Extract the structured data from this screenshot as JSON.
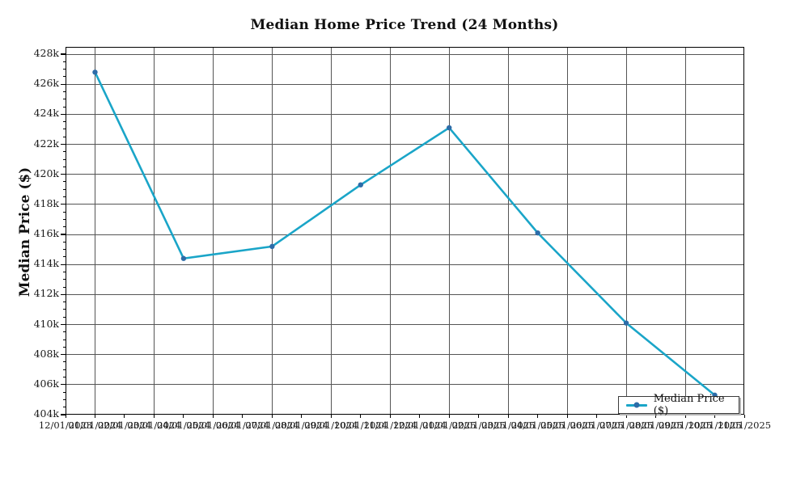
{
  "chart_data": {
    "type": "line",
    "title": "Median Home Price Trend (24 Months)",
    "xlabel": "",
    "ylabel": "Median Price ($)",
    "ylim_k": [
      404,
      428.5
    ],
    "grid": "on",
    "legend_position": "lower right",
    "colors": {
      "line": "#1aa5c8",
      "marker": "#2d6ca8",
      "grid": "#555555",
      "spine": "#000000"
    },
    "y_ticks": [
      {
        "label": "404k",
        "value": 404
      },
      {
        "label": "406k",
        "value": 406
      },
      {
        "label": "408k",
        "value": 408
      },
      {
        "label": "410k",
        "value": 410
      },
      {
        "label": "412k",
        "value": 412
      },
      {
        "label": "414k",
        "value": 414
      },
      {
        "label": "416k",
        "value": 416
      },
      {
        "label": "418k",
        "value": 418
      },
      {
        "label": "420k",
        "value": 420
      },
      {
        "label": "422k",
        "value": 422
      },
      {
        "label": "424k",
        "value": 424
      },
      {
        "label": "426k",
        "value": 426
      },
      {
        "label": "428k",
        "value": 428
      }
    ],
    "x_tick_labels": [
      "12/01/2023",
      "01/01/2024",
      "02/01/2024",
      "03/01/2024",
      "04/01/2024",
      "05/01/2024",
      "06/01/2024",
      "07/01/2024",
      "08/01/2024",
      "09/01/2024",
      "10/01/2024",
      "11/01/2024",
      "12/01/2024",
      "01/01/2025",
      "02/01/2025",
      "03/01/2025",
      "04/01/2025",
      "05/01/2025",
      "06/01/2025",
      "07/01/2025",
      "08/01/2025",
      "09/01/2025",
      "10/01/2025",
      "11/01/2025"
    ],
    "series": [
      {
        "name": "Median Price ($)",
        "points": [
          {
            "date": "01/01/2024",
            "value_k": 426.8
          },
          {
            "date": "04/01/2024",
            "value_k": 414.4
          },
          {
            "date": "07/01/2024",
            "value_k": 415.2
          },
          {
            "date": "10/01/2024",
            "value_k": 419.3
          },
          {
            "date": "01/01/2025",
            "value_k": 423.1
          },
          {
            "date": "04/01/2025",
            "value_k": 416.1
          },
          {
            "date": "07/01/2025",
            "value_k": 410.1
          },
          {
            "date": "10/01/2025",
            "value_k": 405.3
          }
        ]
      }
    ]
  }
}
